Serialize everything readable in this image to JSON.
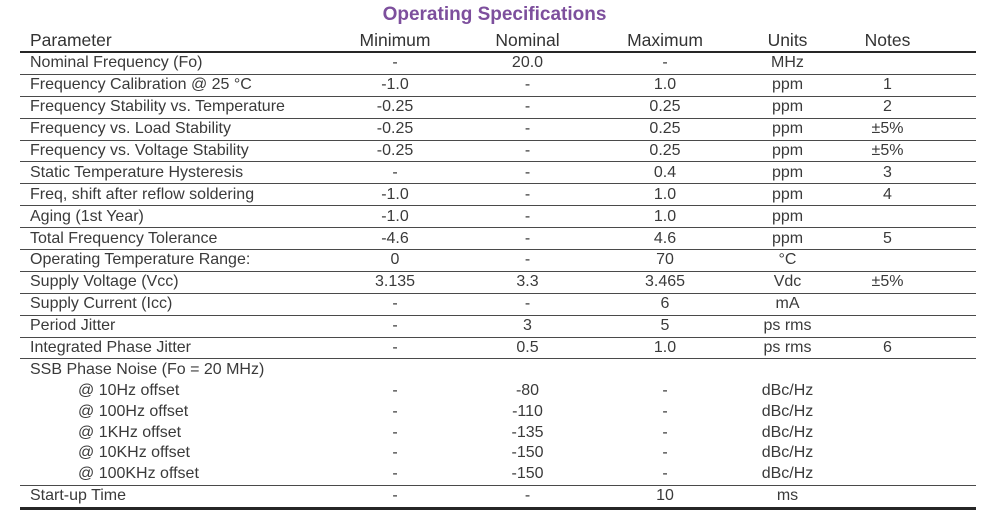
{
  "title": "Operating Specifications",
  "colors": {
    "title_accent": "#7d4f9d",
    "text": "#3a3a3a",
    "rule": "#4a4a4a"
  },
  "table": {
    "headers": [
      "Parameter",
      "Minimum",
      "Nominal",
      "Maximum",
      "Units",
      "Notes"
    ],
    "rows": [
      {
        "parameter": "Nominal Frequency (Fo)",
        "minimum": "-",
        "nominal": "20.0",
        "maximum": "-",
        "units": "MHz",
        "notes": "",
        "indent": false,
        "divider": true
      },
      {
        "parameter": "Frequency Calibration @ 25 °C",
        "minimum": "-1.0",
        "nominal": "-",
        "maximum": "1.0",
        "units": "ppm",
        "notes": "1",
        "indent": false,
        "divider": true
      },
      {
        "parameter": "Frequency Stability vs. Temperature",
        "minimum": "-0.25",
        "nominal": "-",
        "maximum": "0.25",
        "units": "ppm",
        "notes": "2",
        "indent": false,
        "divider": true
      },
      {
        "parameter": "Frequency vs. Load Stability",
        "minimum": "-0.25",
        "nominal": "-",
        "maximum": "0.25",
        "units": "ppm",
        "notes": "±5%",
        "indent": false,
        "divider": true
      },
      {
        "parameter": "Frequency vs. Voltage Stability",
        "minimum": "-0.25",
        "nominal": "-",
        "maximum": "0.25",
        "units": "ppm",
        "notes": "±5%",
        "indent": false,
        "divider": true
      },
      {
        "parameter": "Static Temperature Hysteresis",
        "minimum": "-",
        "nominal": "-",
        "maximum": "0.4",
        "units": "ppm",
        "notes": "3",
        "indent": false,
        "divider": true
      },
      {
        "parameter": "Freq, shift after reflow soldering",
        "minimum": "-1.0",
        "nominal": "-",
        "maximum": "1.0",
        "units": "ppm",
        "notes": "4",
        "indent": false,
        "divider": true
      },
      {
        "parameter": "Aging (1st Year)",
        "minimum": "-1.0",
        "nominal": "-",
        "maximum": "1.0",
        "units": "ppm",
        "notes": "",
        "indent": false,
        "divider": true
      },
      {
        "parameter": "Total Frequency Tolerance",
        "minimum": "-4.6",
        "nominal": "-",
        "maximum": "4.6",
        "units": "ppm",
        "notes": "5",
        "indent": false,
        "divider": true
      },
      {
        "parameter": "Operating Temperature Range:",
        "minimum": "0",
        "nominal": "-",
        "maximum": "70",
        "units": "°C",
        "notes": "",
        "indent": false,
        "divider": true
      },
      {
        "parameter": "Supply Voltage (Vcc)",
        "minimum": "3.135",
        "nominal": "3.3",
        "maximum": "3.465",
        "units": "Vdc",
        "notes": "±5%",
        "indent": false,
        "divider": true
      },
      {
        "parameter": "Supply Current (Icc)",
        "minimum": "-",
        "nominal": "-",
        "maximum": "6",
        "units": "mA",
        "notes": "",
        "indent": false,
        "divider": true
      },
      {
        "parameter": "Period Jitter",
        "minimum": "-",
        "nominal": "3",
        "maximum": "5",
        "units": "ps rms",
        "notes": "",
        "indent": false,
        "divider": true
      },
      {
        "parameter": "Integrated Phase Jitter",
        "minimum": "-",
        "nominal": "0.5",
        "maximum": "1.0",
        "units": "ps rms",
        "notes": "6",
        "indent": false,
        "divider": true
      },
      {
        "parameter": "SSB Phase Noise (Fo = 20 MHz)",
        "minimum": "",
        "nominal": "",
        "maximum": "",
        "units": "",
        "notes": "",
        "indent": false,
        "divider": false
      },
      {
        "parameter": "@ 10Hz offset",
        "minimum": "-",
        "nominal": "-80",
        "maximum": "-",
        "units": "dBc/Hz",
        "notes": "",
        "indent": true,
        "divider": false
      },
      {
        "parameter": "@ 100Hz offset",
        "minimum": "-",
        "nominal": "-110",
        "maximum": "-",
        "units": "dBc/Hz",
        "notes": "",
        "indent": true,
        "divider": false
      },
      {
        "parameter": "@ 1KHz offset",
        "minimum": "-",
        "nominal": "-135",
        "maximum": "-",
        "units": "dBc/Hz",
        "notes": "",
        "indent": true,
        "divider": false
      },
      {
        "parameter": "@ 10KHz offset",
        "minimum": "-",
        "nominal": "-150",
        "maximum": "-",
        "units": "dBc/Hz",
        "notes": "",
        "indent": true,
        "divider": false
      },
      {
        "parameter": "@ 100KHz offset",
        "minimum": "-",
        "nominal": "-150",
        "maximum": "-",
        "units": "dBc/Hz",
        "notes": "",
        "indent": true,
        "divider": true
      },
      {
        "parameter": "Start-up Time",
        "minimum": "-",
        "nominal": "-",
        "maximum": "10",
        "units": "ms",
        "notes": "",
        "indent": false,
        "divider": true
      }
    ]
  }
}
